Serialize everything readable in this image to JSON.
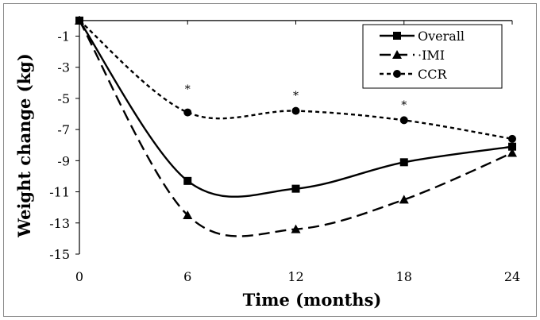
{
  "chart_data": {
    "type": "line",
    "xlabel": "Time (months)",
    "ylabel": "Weight change (kg)",
    "x": [
      0,
      6,
      12,
      18,
      24
    ],
    "xticks": [
      "0",
      "6",
      "12",
      "18",
      "24"
    ],
    "yticks": [
      "-1",
      "-3",
      "-5",
      "-7",
      "-9",
      "-11",
      "-13",
      "-15"
    ],
    "xlim": [
      0,
      24
    ],
    "ylim": [
      -15,
      0.3
    ],
    "grid": false,
    "legend": "top-right",
    "series": [
      {
        "name": "Overall",
        "marker": "square",
        "dash": "solid",
        "values": [
          0,
          -10.3,
          -10.8,
          -9.1,
          -8.1
        ]
      },
      {
        "name": "·IMI",
        "marker": "triangle",
        "dash": "long-dash",
        "values": [
          0,
          -12.5,
          -13.4,
          -11.5,
          -8.5
        ]
      },
      {
        "name": "CCR",
        "marker": "circle",
        "dash": "short-dash",
        "values": [
          0,
          -5.9,
          -5.8,
          -6.4,
          -7.6
        ]
      }
    ],
    "annotations": [
      {
        "text": "*",
        "x": 6,
        "y": -4.2
      },
      {
        "text": "*",
        "x": 12,
        "y": -4.6
      },
      {
        "text": "*",
        "x": 18,
        "y": -5.2
      }
    ]
  }
}
